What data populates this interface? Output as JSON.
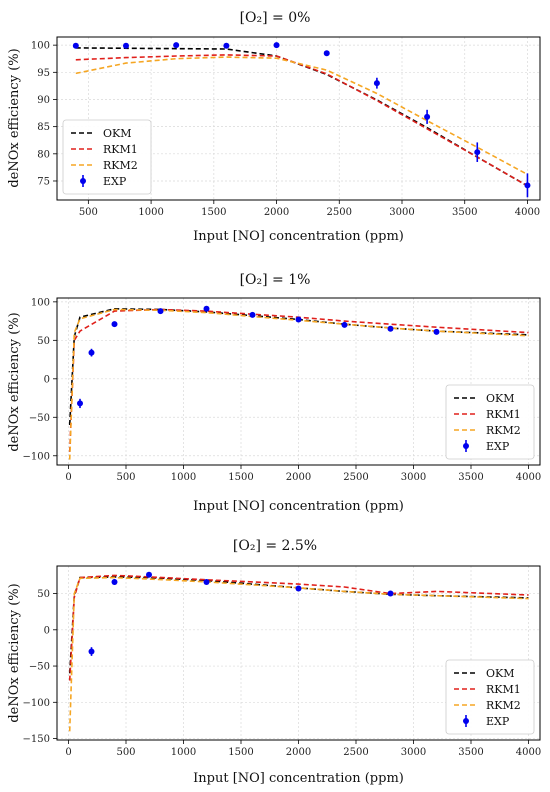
{
  "chart_data": [
    {
      "type": "line",
      "title": "[O₂] = 0%",
      "xlabel": "Input [NO] concentration (ppm)",
      "ylabel": "deNOx efficiency (%)",
      "xlim": [
        250,
        4100
      ],
      "ylim": [
        71.5,
        101.5
      ],
      "xticks": [
        500,
        1000,
        1500,
        2000,
        2500,
        3000,
        3500,
        4000
      ],
      "yticks": [
        75,
        80,
        85,
        90,
        95,
        100
      ],
      "grid": true,
      "legend_position": "lower-left",
      "series": [
        {
          "name": "OKM",
          "style": "line",
          "color": "#000000",
          "x": [
            400,
            1600,
            2000,
            2400,
            2800,
            3200,
            3600,
            4000
          ],
          "y": [
            99.5,
            99.3,
            98.0,
            94.6,
            89.9,
            84.8,
            79.4,
            74.1
          ]
        },
        {
          "name": "RKM1",
          "style": "line",
          "color": "#e0201b",
          "x": [
            400,
            800,
            1200,
            1600,
            2000,
            2400,
            2800,
            3200,
            3600,
            4000
          ],
          "y": [
            97.3,
            97.7,
            98.0,
            98.2,
            98.0,
            94.7,
            89.8,
            84.6,
            79.4,
            74.1
          ]
        },
        {
          "name": "RKM2",
          "style": "line",
          "color": "#f5a623",
          "x": [
            400,
            800,
            1200,
            1600,
            2000,
            2400,
            2800,
            3200,
            3600,
            4000
          ],
          "y": [
            94.8,
            96.7,
            97.5,
            97.8,
            97.6,
            95.4,
            91.1,
            86.1,
            81.2,
            76.2
          ]
        },
        {
          "name": "EXP",
          "style": "errorbar",
          "color": "#0000ee",
          "x": [
            400,
            800,
            1200,
            1600,
            2000,
            2400,
            2800,
            3200,
            3600,
            4000
          ],
          "y": [
            99.9,
            99.9,
            100.0,
            99.9,
            100.0,
            98.5,
            93.0,
            86.8,
            80.3,
            74.2
          ],
          "err": [
            0,
            0,
            0,
            0,
            0,
            0,
            1.0,
            1.3,
            1.8,
            2.2
          ]
        }
      ]
    },
    {
      "type": "line",
      "title": "[O₂] = 1%",
      "xlabel": "Input [NO] concentration (ppm)",
      "ylabel": "deNOx efficiency (%)",
      "xlim": [
        -100,
        4100
      ],
      "ylim": [
        -112,
        105
      ],
      "xticks": [
        0,
        500,
        1000,
        1500,
        2000,
        2500,
        3000,
        3500,
        4000
      ],
      "yticks": [
        -100,
        -50,
        0,
        50,
        100
      ],
      "grid": true,
      "legend_position": "lower-right",
      "series": [
        {
          "name": "OKM",
          "style": "line",
          "color": "#000000",
          "x": [
            10,
            50,
            100,
            400,
            800,
            1200,
            1600,
            2000,
            2400,
            2800,
            3200,
            4000
          ],
          "y": [
            -60,
            55,
            80,
            91,
            90,
            87,
            82,
            77,
            71,
            66,
            62,
            57
          ]
        },
        {
          "name": "RKM1",
          "style": "line",
          "color": "#e0201b",
          "x": [
            10,
            50,
            100,
            400,
            800,
            1200,
            1600,
            2000,
            2400,
            2800,
            3200,
            4000
          ],
          "y": [
            -95,
            50,
            62,
            88,
            90,
            88,
            84,
            80,
            75,
            71,
            67,
            60
          ]
        },
        {
          "name": "RKM2",
          "style": "line",
          "color": "#f5a623",
          "x": [
            10,
            50,
            100,
            400,
            800,
            1200,
            1600,
            2000,
            2400,
            2800,
            3200,
            4000
          ],
          "y": [
            -105,
            60,
            78,
            90,
            89,
            86,
            81,
            76,
            71,
            66,
            62,
            56
          ]
        },
        {
          "name": "EXP",
          "style": "errorbar",
          "color": "#0000ee",
          "x": [
            100,
            200,
            400,
            800,
            1200,
            1600,
            2000,
            2400,
            2800,
            3200
          ],
          "y": [
            -32,
            34,
            71,
            88,
            91,
            83,
            77,
            70,
            65,
            61
          ],
          "err": [
            6,
            5,
            3,
            2,
            2,
            2,
            2,
            2,
            2,
            2
          ]
        }
      ]
    },
    {
      "type": "line",
      "title": "[O₂] = 2.5%",
      "xlabel": "Input [NO] concentration (ppm)",
      "ylabel": "deNOx efficiency (%)",
      "xlim": [
        -100,
        4100
      ],
      "ylim": [
        -152,
        88
      ],
      "xticks": [
        0,
        500,
        1000,
        1500,
        2000,
        2500,
        3000,
        3500,
        4000
      ],
      "yticks": [
        -150,
        -100,
        -50,
        0,
        50
      ],
      "grid": true,
      "legend_position": "lower-right",
      "series": [
        {
          "name": "OKM",
          "style": "line",
          "color": "#000000",
          "x": [
            10,
            50,
            100,
            400,
            700,
            1200,
            2000,
            2400,
            2800,
            3200,
            4000
          ],
          "y": [
            -60,
            47,
            72,
            73,
            72,
            68,
            58,
            53,
            49,
            47,
            44
          ]
        },
        {
          "name": "RKM1",
          "style": "line",
          "color": "#e0201b",
          "x": [
            10,
            50,
            100,
            400,
            700,
            1200,
            2000,
            2400,
            2800,
            3200,
            4000
          ],
          "y": [
            -70,
            45,
            72,
            75,
            73,
            69,
            63,
            59,
            50,
            53,
            48
          ]
        },
        {
          "name": "RKM2",
          "style": "line",
          "color": "#f5a623",
          "x": [
            10,
            50,
            100,
            400,
            700,
            1200,
            2000,
            2400,
            2800,
            3200,
            4000
          ],
          "y": [
            -140,
            50,
            71,
            72,
            70,
            66,
            58,
            53,
            49,
            47,
            43
          ]
        },
        {
          "name": "EXP",
          "style": "errorbar",
          "color": "#0000ee",
          "x": [
            200,
            400,
            700,
            1200,
            2000,
            2800
          ],
          "y": [
            -30,
            66,
            76,
            66,
            57,
            50
          ],
          "err": [
            6,
            4,
            3,
            2,
            2,
            2
          ]
        }
      ]
    }
  ]
}
